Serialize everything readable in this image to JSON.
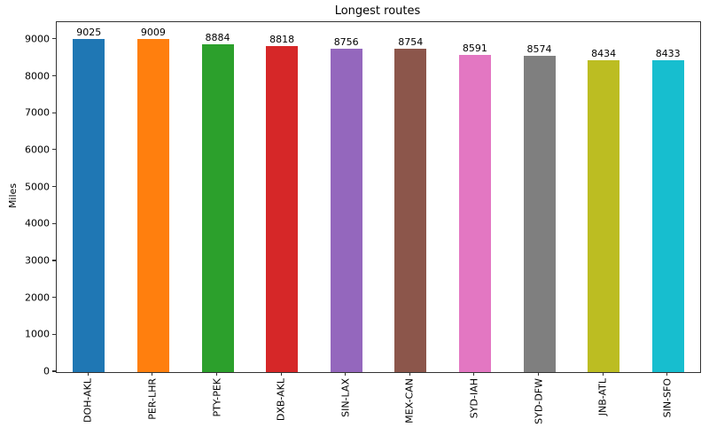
{
  "chart_data": {
    "type": "bar",
    "title": "Longest routes",
    "xlabel": "",
    "ylabel": "Miles",
    "categories": [
      "DOH-AKL",
      "PER-LHR",
      "PTY-PEK",
      "DXB-AKL",
      "SIN-LAX",
      "MEX-CAN",
      "SYD-IAH",
      "SYD-DFW",
      "JNB-ATL",
      "SIN-SFO"
    ],
    "values": [
      9025,
      9009,
      8884,
      8818,
      8756,
      8754,
      8591,
      8574,
      8434,
      8433
    ],
    "bar_colors": [
      "#1f77b4",
      "#ff7f0e",
      "#2ca02c",
      "#d62728",
      "#9467bd",
      "#8c564b",
      "#e377c2",
      "#7f7f7f",
      "#bcbd22",
      "#17becf"
    ],
    "value_labels_shown": true,
    "yticks": [
      0,
      1000,
      2000,
      3000,
      4000,
      5000,
      6000,
      7000,
      8000,
      9000
    ],
    "ylim": [
      0,
      9476
    ],
    "grid": false,
    "legend": "none",
    "axis_color": "#333333",
    "background_color": "#ffffff"
  }
}
